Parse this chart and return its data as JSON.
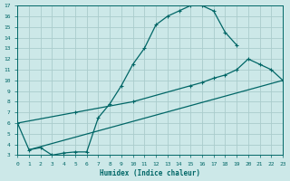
{
  "xlabel": "Humidex (Indice chaleur)",
  "bg_color": "#cce8e8",
  "grid_color": "#aacccc",
  "line_color": "#006666",
  "xlim": [
    0,
    23
  ],
  "ylim": [
    3,
    17
  ],
  "xticks": [
    0,
    1,
    2,
    3,
    4,
    5,
    6,
    7,
    8,
    9,
    10,
    11,
    12,
    13,
    14,
    15,
    16,
    17,
    18,
    19,
    20,
    21,
    22,
    23
  ],
  "yticks": [
    3,
    4,
    5,
    6,
    7,
    8,
    9,
    10,
    11,
    12,
    13,
    14,
    15,
    16,
    17
  ],
  "line1_x": [
    0,
    1,
    2,
    3,
    4,
    5,
    6,
    7,
    8,
    9,
    10,
    11,
    12,
    13,
    14,
    15,
    16,
    17,
    18,
    19
  ],
  "line1_y": [
    6.0,
    3.5,
    3.7,
    3.0,
    3.2,
    3.3,
    3.3,
    6.5,
    7.8,
    9.5,
    11.5,
    13.0,
    15.2,
    16.0,
    16.5,
    17.0,
    17.0,
    16.5,
    14.5,
    13.3
  ],
  "line2_x": [
    0,
    5,
    10,
    15,
    16,
    17,
    18,
    19,
    20,
    21,
    22,
    23
  ],
  "line2_y": [
    6.0,
    7.0,
    8.0,
    9.5,
    9.8,
    10.2,
    10.5,
    11.0,
    12.0,
    11.5,
    11.0,
    10.0
  ],
  "line3_x": [
    1,
    23
  ],
  "line3_y": [
    3.5,
    10.0
  ]
}
